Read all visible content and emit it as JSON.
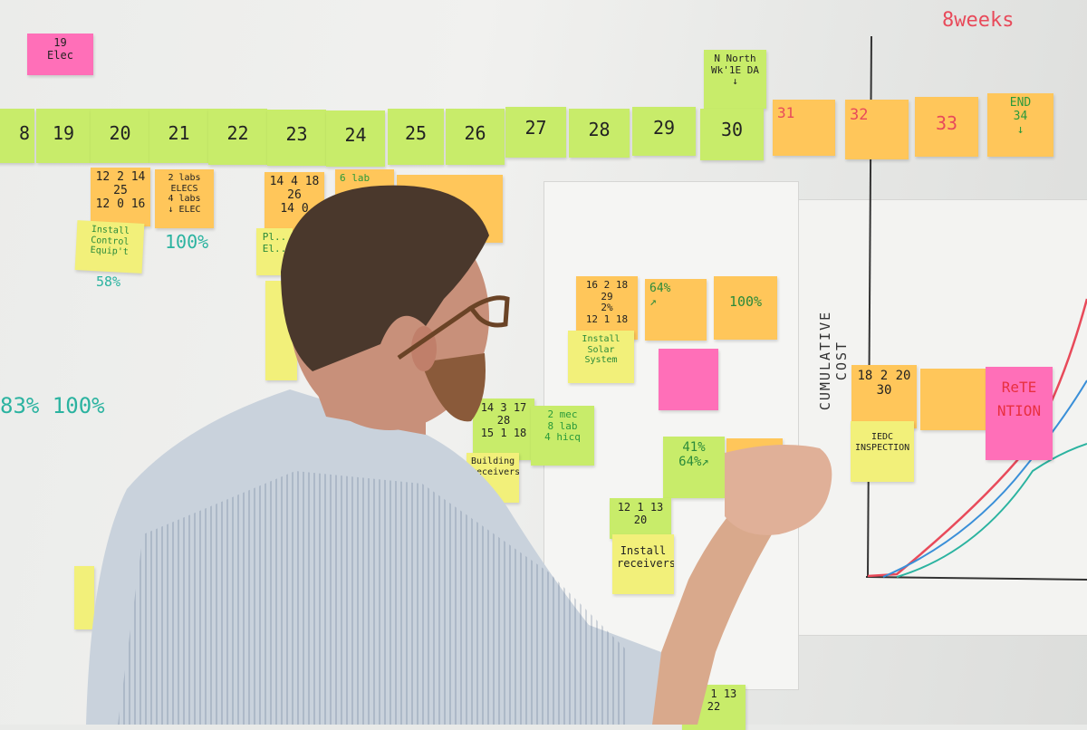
{
  "colors": {
    "green": "#c8ec6a",
    "orange": "#ffc65a",
    "yellow": "#f2f07a",
    "pink": "#ff6fb8",
    "teal_marker": "#2bb3a0",
    "red_marker": "#e84a5a",
    "blue_marker": "#3a8fd8"
  },
  "top_notes": {
    "elec": "19\nElec",
    "north": "N North\nWk'1E DA\n↓",
    "weeks": "8weeks"
  },
  "timeline": [
    "8",
    "19",
    "20",
    "21",
    "22",
    "23",
    "24",
    "25",
    "26",
    "27",
    "28",
    "29",
    "30",
    "31",
    "32",
    "33",
    "END\n34\n↓"
  ],
  "tasks": {
    "t25": "12 2 14\n25\n12 0 16",
    "t25b": "Install\nControl\nEquip't",
    "pct58": "58%",
    "t21": "2 labs\nELECS\n4 labs\n↓ ELEC",
    "pct100a": "100%",
    "t26": "14 4 18\n26\n14 0",
    "t26b": "Pl..\nEl..",
    "t24": "6 lab",
    "pct_row": "83% 100%",
    "t29": "16 2 18\n29\n2%\n12 1 18",
    "t29b": "Install\nSolar\nSystem",
    "pct64": "64%\n↗",
    "pct100b": "100%",
    "t28": "14 3 17\n28\n15 1 18",
    "t28b": "2 mec\n8 lab\n4 hicq",
    "t28c": "Building\nreceivers",
    "pct41": "41%\n64%↗",
    "t20": "12 1 13\n20",
    "t20b": "Install\nreceivers",
    "t22": "12 1 13\n22",
    "t30": "18 2 20\n30",
    "t30b": "IEDC\nINSPECTION",
    "retention": "ReTE\nNTION"
  },
  "chart": {
    "ylabel": "CUMULATIVE COST"
  }
}
